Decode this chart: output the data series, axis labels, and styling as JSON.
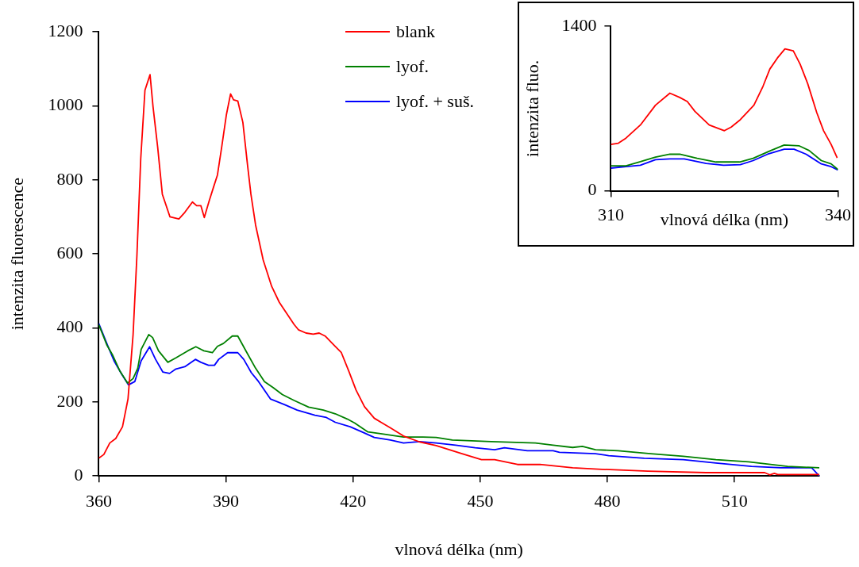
{
  "chart_data": [
    {
      "type": "line",
      "xlabel": "vlnová délka (nm)",
      "ylabel": "intenzita fluorescence",
      "xlim": [
        360,
        530
      ],
      "xticks": [
        360,
        390,
        420,
        450,
        480,
        510
      ],
      "ylim": [
        0,
        1200
      ],
      "yticks": [
        0,
        200,
        400,
        600,
        800,
        1000,
        1200
      ],
      "legend": "top",
      "series": [
        {
          "name": "blank",
          "color": "#ff0000",
          "x": [
            360,
            361.2,
            362.6,
            364,
            365.6,
            366.9,
            368.1,
            369,
            369.9,
            370.9,
            372.1,
            372.8,
            373.9,
            375,
            376.8,
            378.9,
            380.3,
            382.1,
            383.1,
            384.1,
            384.9,
            386.1,
            387.1,
            388,
            389,
            390.1,
            391.1,
            391.8,
            392.8,
            394,
            395.1,
            395.9,
            397,
            398.8,
            400.8,
            402.6,
            404,
            406.1,
            407.1,
            408.9,
            410.6,
            412,
            413.4,
            415.8,
            417.2,
            419,
            420.7,
            422.7,
            425,
            426.9,
            428.8,
            431.9,
            435.7,
            439.6,
            445.7,
            450.3,
            453.4,
            458.8,
            464.1,
            471.8,
            478.7,
            489.5,
            503.3,
            517.1,
            518.3,
            519.4,
            520.2,
            530
          ],
          "values": [
            48,
            58,
            89,
            101,
            133,
            208,
            382,
            595,
            856,
            1042,
            1084,
            998,
            888,
            761,
            700,
            694,
            712,
            740,
            730,
            730,
            698,
            745,
            781,
            813,
            888,
            975,
            1032,
            1016,
            1013,
            955,
            840,
            761,
            678,
            583,
            512,
            469,
            445,
            409,
            395,
            386,
            383,
            386,
            378,
            350,
            334,
            283,
            232,
            187,
            156,
            143,
            130,
            108,
            92,
            82,
            60,
            44,
            44,
            31,
            31,
            22,
            18,
            13,
            9,
            9,
            3,
            7,
            4,
            4
          ]
        },
        {
          "name": "lyof.",
          "color": "#008000",
          "x": [
            360,
            361.9,
            363.3,
            365,
            366.8,
            368.1,
            369.2,
            370,
            371.8,
            372.7,
            374.1,
            376.3,
            378.2,
            381,
            382.9,
            384.8,
            386.8,
            388,
            389.4,
            391.5,
            392.8,
            394.9,
            397,
            399.1,
            401.2,
            403.3,
            406.1,
            409.5,
            413,
            415.8,
            418.6,
            420.4,
            423.5,
            426.5,
            431.9,
            436.5,
            439.6,
            443.4,
            452.6,
            463,
            467.2,
            471.8,
            474.1,
            477.2,
            482.5,
            490.2,
            497.9,
            505.6,
            513.3,
            522.5,
            530
          ],
          "values": [
            409,
            354,
            326,
            283,
            251,
            263,
            291,
            342,
            382,
            374,
            338,
            307,
            319,
            338,
            349,
            338,
            333,
            350,
            358,
            378,
            378,
            334,
            291,
            255,
            238,
            220,
            204,
            186,
            178,
            168,
            154,
            143,
            119,
            114,
            105,
            105,
            104,
            97,
            93,
            89,
            83,
            77,
            80,
            71,
            68,
            60,
            53,
            44,
            38,
            26,
            22
          ]
        },
        {
          "name": "lyof. + suš.",
          "color": "#0000ff",
          "x": [
            360,
            361.9,
            363.6,
            365.4,
            367,
            368.5,
            370,
            372,
            373.4,
            375.1,
            376.7,
            378.2,
            380.3,
            382.8,
            384.1,
            385.9,
            387.3,
            388.3,
            390.4,
            392.8,
            394.2,
            396,
            397.7,
            400.5,
            404,
            406.8,
            411,
            413.7,
            415.8,
            419.3,
            422.1,
            425,
            428.8,
            431.9,
            435.7,
            439.6,
            444.2,
            448.8,
            453.4,
            455.7,
            461.1,
            467.2,
            468.7,
            477.2,
            480.3,
            488.7,
            497.9,
            505.6,
            514,
            520.9,
            528.2,
            530
          ],
          "values": [
            412,
            358,
            311,
            275,
            246,
            255,
            311,
            349,
            315,
            281,
            277,
            289,
            295,
            315,
            307,
            299,
            299,
            315,
            333,
            333,
            315,
            279,
            255,
            208,
            192,
            178,
            164,
            158,
            145,
            133,
            119,
            104,
            97,
            89,
            93,
            89,
            83,
            76,
            71,
            76,
            68,
            68,
            64,
            60,
            55,
            48,
            44,
            35,
            26,
            22,
            22,
            0
          ]
        }
      ]
    },
    {
      "type": "line",
      "xlabel": "vlnová délka (nm)",
      "ylabel": "intenzita fluo.",
      "xlim": [
        310,
        340
      ],
      "xticks": [
        310,
        340
      ],
      "ylim": [
        0,
        1400
      ],
      "yticks": [
        0,
        1400
      ],
      "series": [
        {
          "color": "#ff0000",
          "x": [
            310,
            311,
            312,
            313.9,
            315.9,
            317.8,
            319.1,
            320.1,
            321.1,
            323,
            325,
            325.9,
            327,
            328.9,
            330.1,
            331,
            332,
            333,
            334.1,
            335,
            336,
            337.2,
            338.1,
            339.1,
            339.9
          ],
          "values": [
            394,
            405,
            448,
            559,
            728,
            830,
            794,
            759,
            676,
            559,
            511,
            542,
            599,
            728,
            889,
            1035,
            1129,
            1207,
            1190,
            1077,
            912,
            665,
            511,
            394,
            280
          ]
        },
        {
          "color": "#008000",
          "x": [
            310,
            312,
            313.9,
            315.9,
            317.8,
            319.1,
            321.4,
            323.9,
            327,
            328.8,
            331,
            332.9,
            334.9,
            336.2,
            337.8,
            339.1,
            340
          ],
          "values": [
            212,
            212,
            247,
            287,
            311,
            311,
            276,
            245,
            245,
            276,
            339,
            389,
            382,
            342,
            257,
            229,
            181
          ]
        },
        {
          "color": "#0000ff",
          "x": [
            310,
            312,
            313.9,
            315.9,
            317.8,
            319.7,
            322.6,
            324.9,
            327.1,
            328.8,
            330.7,
            332.9,
            334.2,
            335.8,
            337.8,
            339.1,
            340
          ],
          "values": [
            193,
            205,
            217,
            264,
            271,
            271,
            233,
            217,
            222,
            257,
            311,
            354,
            354,
            311,
            229,
            205,
            177
          ]
        }
      ]
    }
  ]
}
